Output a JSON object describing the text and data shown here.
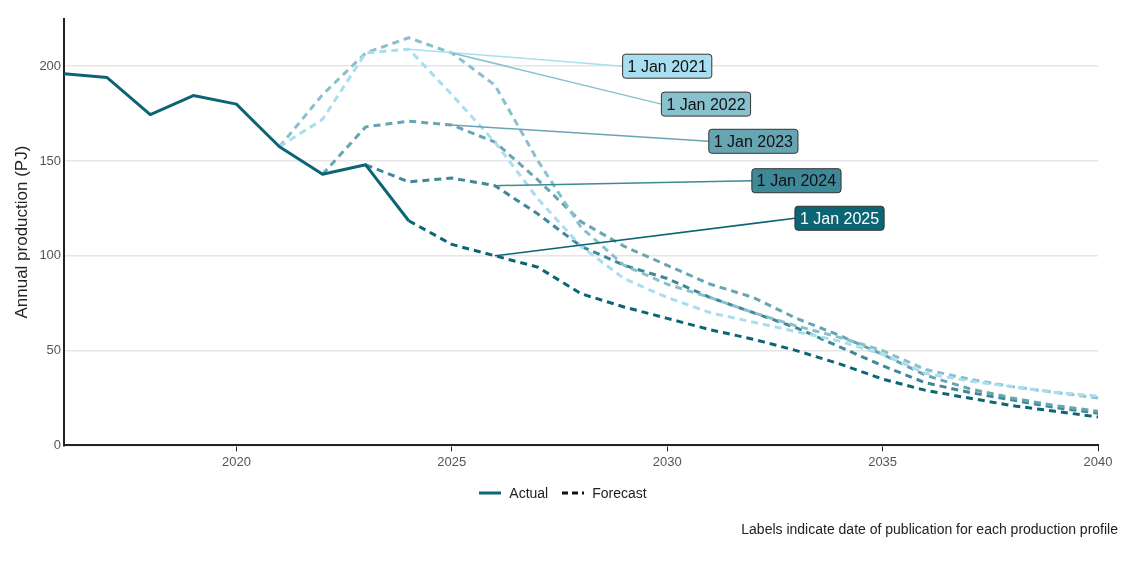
{
  "chart_data": {
    "type": "line",
    "ylabel": "Annual production (PJ)",
    "xlim": [
      2016,
      2040
    ],
    "xticks": [
      2020,
      2025,
      2030,
      2035,
      2040
    ],
    "ylim": [
      0,
      225
    ],
    "yticks": [
      0,
      50,
      100,
      150,
      200
    ],
    "grid": "y",
    "legend": "bottom",
    "series": [
      {
        "name": "Actual",
        "color": "#0b6574",
        "line_style": "solid",
        "x": [
          2016,
          2017,
          2018,
          2019,
          2020,
          2021,
          2022,
          2023,
          2024
        ],
        "values": [
          196,
          194,
          174.5,
          184.5,
          180,
          157.5,
          143,
          148,
          118.5
        ]
      },
      {
        "name": "1 Jan 2021",
        "color": "#a8def0",
        "line_style": "dashed",
        "x": [
          2021,
          2022,
          2023,
          2024,
          2025,
          2026,
          2027,
          2028,
          2029,
          2030,
          2031,
          2032,
          2033,
          2034,
          2035,
          2036,
          2037,
          2038,
          2039,
          2040
        ],
        "values": [
          157.5,
          172,
          207,
          209,
          185,
          160,
          130,
          105,
          88,
          78,
          70,
          65,
          60,
          55,
          48,
          38,
          34,
          31,
          28,
          26
        ]
      },
      {
        "name": "1 Jan 2022",
        "color": "#88c0cd",
        "line_style": "dashed",
        "x": [
          2021,
          2022,
          2023,
          2024,
          2025,
          2026,
          2027,
          2028,
          2029,
          2030,
          2031,
          2032,
          2033,
          2034,
          2035,
          2036,
          2037,
          2038,
          2039,
          2040
        ],
        "values": [
          157.5,
          185,
          207,
          215,
          207,
          190,
          150,
          115,
          95,
          85,
          78,
          70,
          63,
          57,
          50,
          40,
          35,
          31,
          28,
          25
        ]
      },
      {
        "name": "1 Jan 2023",
        "color": "#68a5b3",
        "line_style": "dashed",
        "x": [
          2022,
          2023,
          2024,
          2025,
          2026,
          2027,
          2028,
          2029,
          2030,
          2031,
          2032,
          2033,
          2034,
          2035,
          2036,
          2037,
          2038,
          2039,
          2040
        ],
        "values": [
          143,
          168,
          171,
          169,
          160,
          140,
          118,
          105,
          95,
          85,
          78,
          67,
          58,
          48,
          37,
          30,
          25,
          21,
          18
        ]
      },
      {
        "name": "1 Jan 2024",
        "color": "#3e8898",
        "line_style": "dashed",
        "x": [
          2023,
          2024,
          2025,
          2026,
          2027,
          2028,
          2029,
          2030,
          2031,
          2032,
          2033,
          2034,
          2035,
          2036,
          2037,
          2038,
          2039,
          2040
        ],
        "values": [
          148,
          139,
          141,
          137,
          122,
          105,
          95,
          88,
          78,
          70,
          62,
          52,
          42,
          33,
          28,
          24,
          20,
          17
        ]
      },
      {
        "name": "1 Jan 2025",
        "color": "#0b6574",
        "line_style": "dashed",
        "x": [
          2024,
          2025,
          2026,
          2027,
          2028,
          2029,
          2030,
          2031,
          2032,
          2033,
          2034,
          2035,
          2036,
          2037,
          2038,
          2039,
          2040
        ],
        "values": [
          118.5,
          106,
          100,
          94,
          80,
          73,
          67,
          61,
          56,
          50,
          43,
          35,
          29,
          25,
          21,
          18,
          15
        ]
      }
    ],
    "annotations": [
      "Forecast",
      "Labels indicate date of publication for each production profile"
    ]
  }
}
